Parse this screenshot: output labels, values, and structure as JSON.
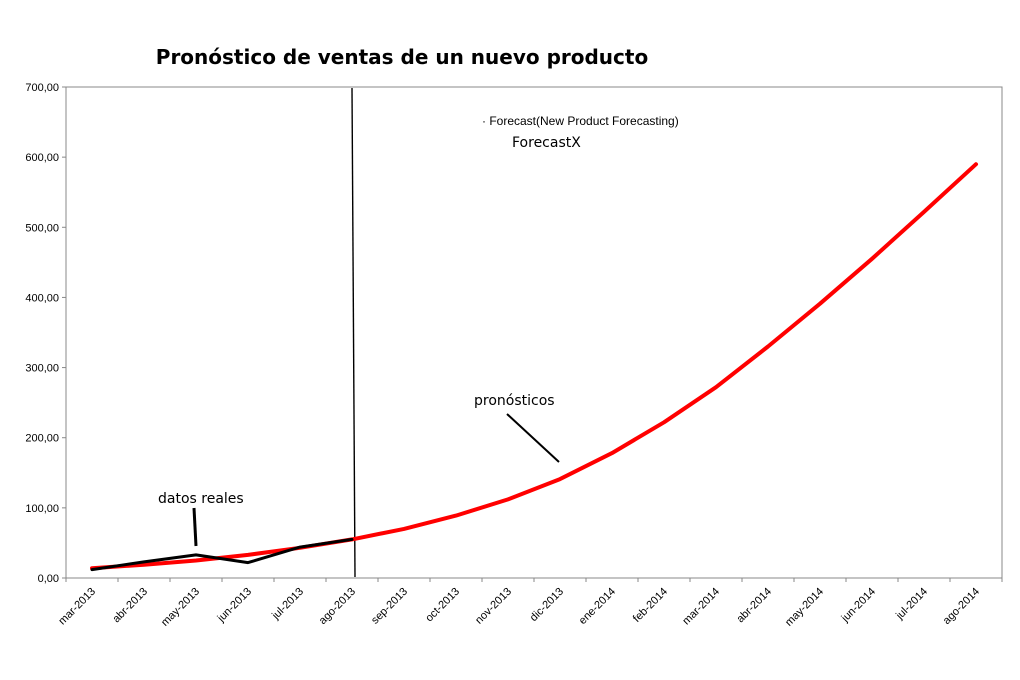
{
  "chart_data": {
    "type": "line",
    "title": "Pronóstico de ventas de un nuevo producto",
    "xlabel": "",
    "ylabel": "",
    "categories": [
      "mar-2013",
      "abr-2013",
      "may-2013",
      "jun-2013",
      "jul-2013",
      "ago-2013",
      "sep-2013",
      "oct-2013",
      "nov-2013",
      "dic-2013",
      "ene-2014",
      "feb-2014",
      "mar-2014",
      "abr-2014",
      "may-2014",
      "jun-2014",
      "jul-2014",
      "ago-2014"
    ],
    "y_ticks": [
      "0,00",
      "100,00",
      "200,00",
      "300,00",
      "400,00",
      "500,00",
      "600,00",
      "700,00"
    ],
    "ylim": [
      0,
      700
    ],
    "grid": false,
    "series": [
      {
        "color": "#000000",
        "values": [
          12,
          23,
          33,
          22,
          44,
          55,
          null,
          null,
          null,
          null,
          null,
          null,
          null,
          null,
          null,
          null,
          null,
          null
        ]
      },
      {
        "color": "#ff0000",
        "values": [
          14,
          19,
          25,
          33,
          43,
          55,
          70,
          89,
          112,
          141,
          178,
          222,
          272,
          330,
          391,
          455,
          522,
          590
        ]
      }
    ],
    "annotations": {
      "datos_reales": "datos reales",
      "pronosticos": "pronósticos",
      "legend_small": "· Forecast(New Product Forecasting)",
      "legend_big": "ForecastX"
    }
  }
}
